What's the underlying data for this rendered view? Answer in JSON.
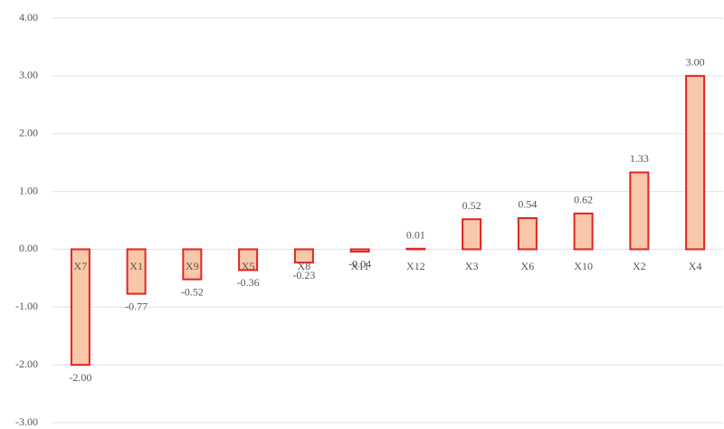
{
  "chart_data": {
    "type": "bar",
    "categories": [
      "X7",
      "X1",
      "X9",
      "X5",
      "X8",
      "X11",
      "X12",
      "X3",
      "X6",
      "X10",
      "X2",
      "X4"
    ],
    "values": [
      -2.0,
      -0.77,
      -0.52,
      -0.36,
      -0.23,
      -0.04,
      0.01,
      0.52,
      0.54,
      0.62,
      1.33,
      3.0
    ],
    "value_labels": [
      "-2.00",
      "-0.77",
      "-0.52",
      "-0.36",
      "-0.23",
      "-0.04",
      "0.01",
      "0.52",
      "0.54",
      "0.62",
      "1.33",
      "3.00"
    ],
    "color": "#f8c8a8",
    "edge_color": "#e02424",
    "ylim": [
      -3,
      4
    ],
    "yticks": [
      {
        "value": -3,
        "label": "-3.00"
      },
      {
        "value": -2,
        "label": "-2.00"
      },
      {
        "value": -1,
        "label": "-1.00"
      },
      {
        "value": 0,
        "label": "0.00"
      },
      {
        "value": 1,
        "label": "1.00"
      },
      {
        "value": 2,
        "label": "2.00"
      },
      {
        "value": 3,
        "label": "3.00"
      },
      {
        "value": 4,
        "label": "4.00"
      }
    ],
    "grid": true
  }
}
